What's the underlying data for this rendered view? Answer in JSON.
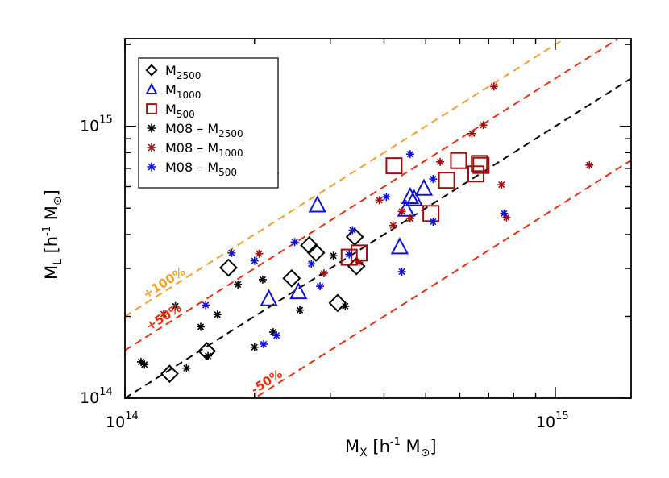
{
  "chart_data": {
    "type": "scatter",
    "xlabel": "M_X [h^-1 M_sun]",
    "ylabel": "M_L [h^-1 M_sun]",
    "x_scale": "log",
    "y_scale": "log",
    "xlim": [
      100000000000000.0,
      1500000000000000.0
    ],
    "ylim": [
      100000000000000.0,
      2100000000000000.0
    ],
    "x_ticks": [
      {
        "value": 100000000000000.0,
        "base": "10",
        "exp": "14"
      },
      {
        "value": 1000000000000000.0,
        "base": "10",
        "exp": "15"
      }
    ],
    "y_ticks": [
      {
        "value": 100000000000000.0,
        "base": "10",
        "exp": "14"
      },
      {
        "value": 1000000000000000.0,
        "base": "10",
        "exp": "15"
      }
    ],
    "axis_labels": {
      "x": {
        "main": "M",
        "sub": "X",
        "unit_open": " [h",
        "unit_exp": "-1",
        "unit_mid": " M",
        "unit_sym": "⊙",
        "unit_close": "]"
      },
      "y": {
        "main": "M",
        "sub": "L",
        "unit_open": " [h",
        "unit_exp": "-1",
        "unit_mid": " M",
        "unit_sym": "⊙",
        "unit_close": "]"
      }
    },
    "legend_position": "top-left",
    "legend": [
      {
        "marker": "diamond",
        "color": "#000000",
        "label": "M",
        "sub": "2500"
      },
      {
        "marker": "triangle",
        "color": "#1010e0",
        "label": "M",
        "sub": "1000"
      },
      {
        "marker": "square",
        "color": "#a01010",
        "label": "M",
        "sub": "500"
      },
      {
        "marker": "star",
        "color": "#000000",
        "label": "M08  –  M",
        "sub": "2500"
      },
      {
        "marker": "star",
        "color": "#a01010",
        "label": "M08  –  M",
        "sub": "1000"
      },
      {
        "marker": "star",
        "color": "#1010e0",
        "label": "M08  –  M",
        "sub": "500"
      }
    ],
    "lines": [
      {
        "name": "+100%",
        "factor": 2.0,
        "color": "#f5a030",
        "label_at_x": 112000000000000.0
      },
      {
        "name": "+50%",
        "factor": 1.5,
        "color": "#e83010",
        "label_at_x": 114000000000000.0
      },
      {
        "name": "1:1",
        "factor": 1.0,
        "color": "#000000"
      },
      {
        "name": "-50%",
        "factor": 0.5,
        "color": "#e83010",
        "label_at_x": 200000000000000.0
      }
    ],
    "series": [
      {
        "name": "M2500",
        "marker": "diamond",
        "color": "#000000",
        "points": [
          [
            127000000000000.0,
            123000000000000.0
          ],
          [
            155000000000000.0,
            149000000000000.0
          ],
          [
            174000000000000.0,
            302000000000000.0
          ],
          [
            244000000000000.0,
            276000000000000.0
          ],
          [
            268000000000000.0,
            365000000000000.0
          ],
          [
            278000000000000.0,
            343000000000000.0
          ],
          [
            312000000000000.0,
            224000000000000.0
          ],
          [
            342000000000000.0,
            392000000000000.0
          ],
          [
            345000000000000.0,
            306000000000000.0
          ]
        ]
      },
      {
        "name": "M1000",
        "marker": "triangle",
        "color": "#1010e0",
        "points": [
          [
            216000000000000.0,
            232000000000000.0
          ],
          [
            253000000000000.0,
            246000000000000.0
          ],
          [
            280000000000000.0,
            513000000000000.0
          ],
          [
            435000000000000.0,
            360000000000000.0
          ],
          [
            450000000000000.0,
            495000000000000.0
          ],
          [
            460000000000000.0,
            551000000000000.0
          ],
          [
            470000000000000.0,
            541000000000000.0
          ],
          [
            495000000000000.0,
            591000000000000.0
          ]
        ]
      },
      {
        "name": "M500",
        "marker": "square",
        "color": "#a01010",
        "points": [
          [
            332000000000000.0,
            330000000000000.0
          ],
          [
            350000000000000.0,
            342000000000000.0
          ],
          [
            422000000000000.0,
            716000000000000.0
          ],
          [
            514000000000000.0,
            478000000000000.0
          ],
          [
            559000000000000.0,
            633000000000000.0
          ],
          [
            596000000000000.0,
            748000000000000.0
          ],
          [
            654000000000000.0,
            668000000000000.0
          ],
          [
            666000000000000.0,
            730000000000000.0
          ],
          [
            672000000000000.0,
            718000000000000.0
          ]
        ]
      },
      {
        "name": "M08 - M2500",
        "marker": "star",
        "color": "#000000",
        "points": [
          [
            109000000000000.0,
            136000000000000.0
          ],
          [
            111000000000000.0,
            133000000000000.0
          ],
          [
            131000000000000.0,
            218000000000000.0
          ],
          [
            139000000000000.0,
            129000000000000.0
          ],
          [
            150000000000000.0,
            183000000000000.0
          ],
          [
            156000000000000.0,
            143000000000000.0
          ],
          [
            164000000000000.0,
            203000000000000.0
          ],
          [
            183000000000000.0,
            262000000000000.0
          ],
          [
            200000000000000.0,
            154000000000000.0
          ],
          [
            209000000000000.0,
            273000000000000.0
          ],
          [
            221000000000000.0,
            175000000000000.0
          ],
          [
            255000000000000.0,
            211000000000000.0
          ],
          [
            305000000000000.0,
            334000000000000.0
          ],
          [
            325000000000000.0,
            218000000000000.0
          ]
        ]
      },
      {
        "name": "M08 - M1000",
        "marker": "star",
        "color": "#a01010",
        "points": [
          [
            123000000000000.0,
            204000000000000.0
          ],
          [
            205000000000000.0,
            340000000000000.0
          ],
          [
            223000000000000.0,
            672000000000000.0
          ],
          [
            290000000000000.0,
            288000000000000.0
          ],
          [
            350000000000000.0,
            316000000000000.0
          ],
          [
            390000000000000.0,
            535000000000000.0
          ],
          [
            420000000000000.0,
            432000000000000.0
          ],
          [
            440000000000000.0,
            486000000000000.0
          ],
          [
            460000000000000.0,
            458000000000000.0
          ],
          [
            540000000000000.0,
            740000000000000.0
          ],
          [
            640000000000000.0,
            940000000000000.0
          ],
          [
            680000000000000.0,
            1010000000000000.0
          ],
          [
            720000000000000.0,
            1400000000000000.0
          ],
          [
            750000000000000.0,
            610000000000000.0
          ],
          [
            770000000000000.0,
            462000000000000.0
          ],
          [
            1200000000000000.0,
            720000000000000.0
          ]
        ]
      },
      {
        "name": "M08 - M500",
        "marker": "star",
        "color": "#1010e0",
        "points": [
          [
            154000000000000.0,
            220000000000000.0
          ],
          [
            177000000000000.0,
            342000000000000.0
          ],
          [
            200000000000000.0,
            320000000000000.0
          ],
          [
            210000000000000.0,
            158000000000000.0
          ],
          [
            225000000000000.0,
            170000000000000.0
          ],
          [
            248000000000000.0,
            375000000000000.0
          ],
          [
            271000000000000.0,
            312000000000000.0
          ],
          [
            284000000000000.0,
            258000000000000.0
          ],
          [
            332000000000000.0,
            338000000000000.0
          ],
          [
            338000000000000.0,
            415000000000000.0
          ],
          [
            405000000000000.0,
            550000000000000.0
          ],
          [
            440000000000000.0,
            292000000000000.0
          ],
          [
            460000000000000.0,
            790000000000000.0
          ],
          [
            520000000000000.0,
            640000000000000.0
          ],
          [
            520000000000000.0,
            446000000000000.0
          ],
          [
            760000000000000.0,
            478000000000000.0
          ]
        ]
      }
    ]
  }
}
